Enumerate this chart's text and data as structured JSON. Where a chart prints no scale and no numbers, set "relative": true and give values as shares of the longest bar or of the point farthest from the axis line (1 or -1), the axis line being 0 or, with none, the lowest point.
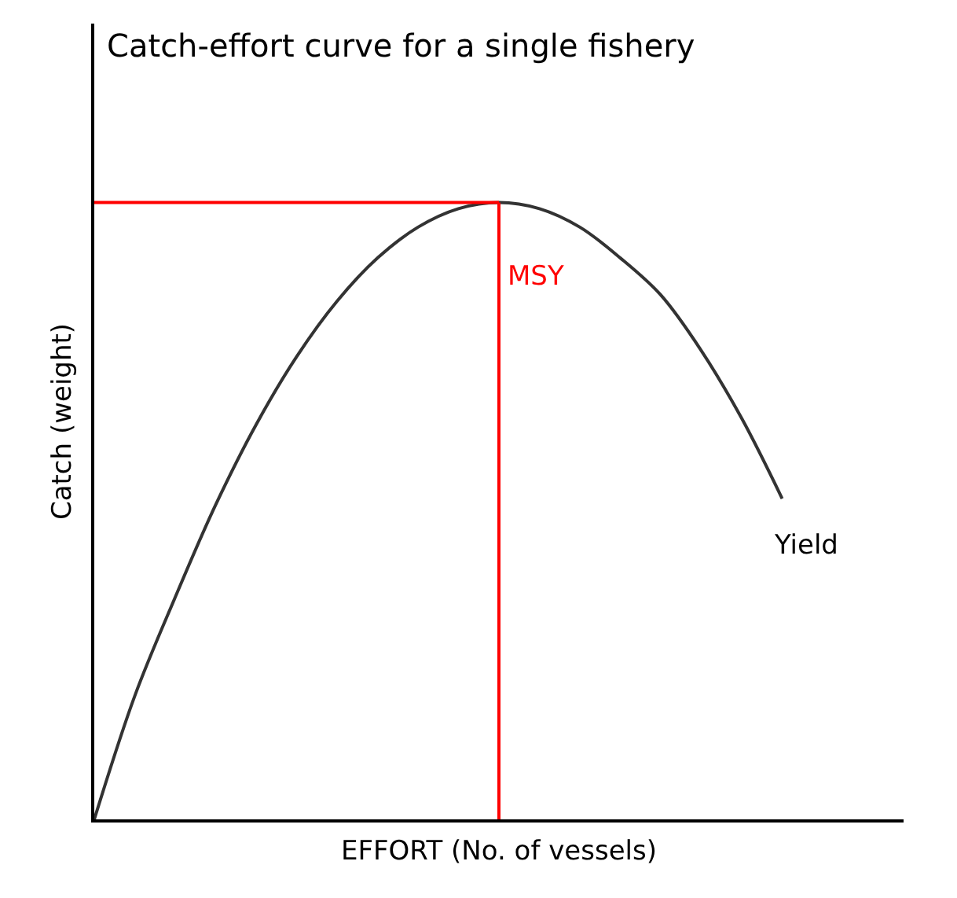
{
  "chart_data": {
    "type": "line",
    "relative": true,
    "title": "Catch-effort curve for a single fishery",
    "xlabel": "EFFORT (No. of vessels)",
    "ylabel": "Catch (weight)",
    "categories": [
      null,
      null,
      null,
      null,
      null,
      null,
      null,
      null,
      null,
      null,
      null,
      null,
      null,
      null,
      null,
      null,
      null,
      null,
      null,
      null,
      null
    ],
    "series": [
      {
        "name": "Yield",
        "color": "#333333",
        "values": [
          0,
          0.2,
          0.36,
          0.51,
          0.64,
          0.75,
          0.84,
          0.91,
          0.96,
          0.99,
          1,
          0.99,
          0.96,
          0.91,
          0.85,
          0.76,
          0.65,
          0.52,
          null,
          null,
          null
        ]
      }
    ],
    "ref_lines": [
      {
        "axis": "y",
        "value": 1,
        "label": null,
        "color": "#ff0000"
      }
    ],
    "annotations": [
      "MSY"
    ],
    "legend": false,
    "marker": "none",
    "line_style": "solid"
  }
}
